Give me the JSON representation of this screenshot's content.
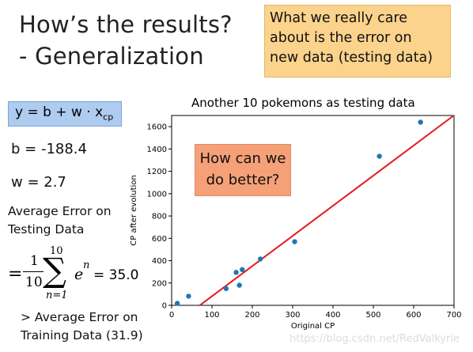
{
  "slide": {
    "title_line1": "How’s the results?",
    "title_line2": "- Generalization",
    "callout": [
      "What we really care",
      "about is the error on",
      "new data (testing data)"
    ],
    "formula": {
      "lhs": "y = b + w · x",
      "sub": "cp"
    },
    "b_text": "b = -188.4",
    "w_text": "w = 2.7",
    "avg_error_label": [
      "Average Error on",
      "Testing Data"
    ],
    "equation": {
      "equals": "=",
      "frac_num": "1",
      "frac_den": "10",
      "sum_sym": "∑",
      "sum_upper": "10",
      "sum_lower": "n=1",
      "term_base": "e",
      "term_sup": "n",
      "result": "= 35.0"
    },
    "training_compare": [
      "> Average Error on",
      "Training Data (31.9)"
    ],
    "inner_callout": [
      "How can we",
      "do better?"
    ],
    "watermark": "https://blog.csdn.net/RedValkyrie"
  },
  "colors": {
    "callout_bg": "#fbd38c",
    "formula_bg": "#aecbf0",
    "inner_callout_bg": "#f6a078",
    "point": "#1f77b4",
    "line": "#e31a1c"
  },
  "chart_data": {
    "type": "scatter",
    "title": "Another 10 pokemons as testing data",
    "xlabel": "Original CP",
    "ylabel": "CP after evolution",
    "xlim": [
      0,
      700
    ],
    "ylim": [
      0,
      1700
    ],
    "xticks": [
      0,
      100,
      200,
      300,
      400,
      500,
      600,
      700
    ],
    "yticks": [
      0,
      200,
      400,
      600,
      800,
      1000,
      1200,
      1400,
      1600
    ],
    "grid": false,
    "points": [
      {
        "x": 14,
        "y": 18
      },
      {
        "x": 42,
        "y": 82
      },
      {
        "x": 135,
        "y": 150
      },
      {
        "x": 160,
        "y": 295
      },
      {
        "x": 168,
        "y": 180
      },
      {
        "x": 175,
        "y": 320
      },
      {
        "x": 220,
        "y": 415
      },
      {
        "x": 305,
        "y": 570
      },
      {
        "x": 515,
        "y": 1335
      },
      {
        "x": 617,
        "y": 1640
      }
    ],
    "fit_line": {
      "b": -188.4,
      "w": 2.7
    }
  }
}
